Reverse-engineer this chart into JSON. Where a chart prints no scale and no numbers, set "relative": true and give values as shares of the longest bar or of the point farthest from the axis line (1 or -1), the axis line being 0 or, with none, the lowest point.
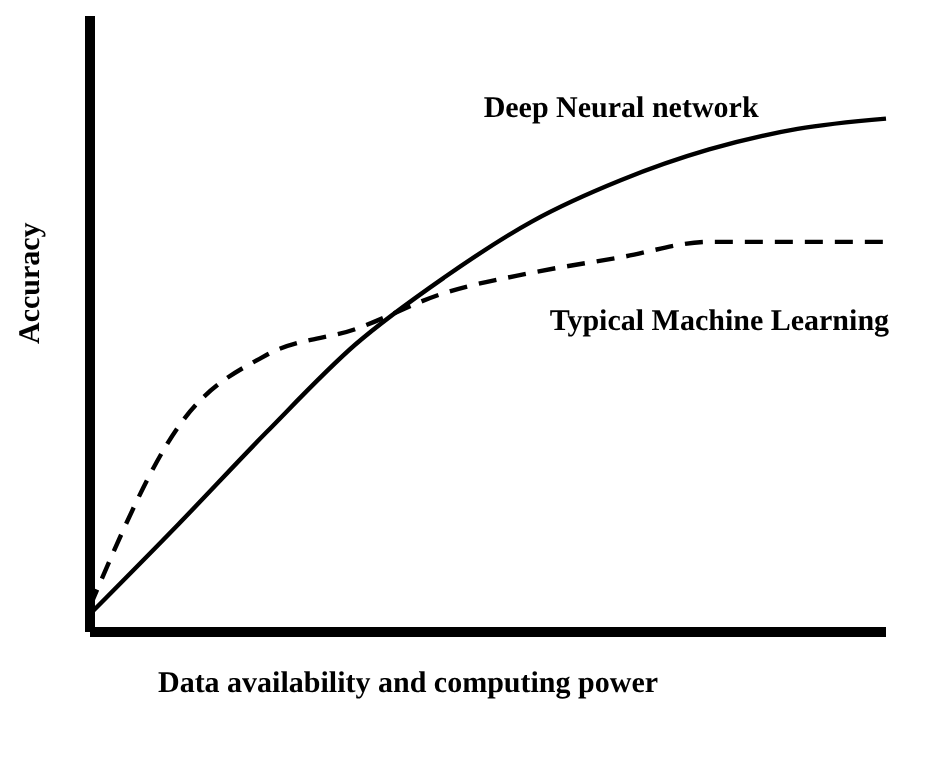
{
  "chart_data": {
    "type": "line",
    "relative": true,
    "xlabel": "Data availability and computing power",
    "ylabel": "Accuracy",
    "categories": [
      null,
      null,
      null,
      null,
      null,
      null,
      null,
      null,
      null,
      null
    ],
    "marker": "none",
    "legend": false,
    "grid": false,
    "series": [
      {
        "name": "Deep Neural network",
        "color": "#000000",
        "line_style": "solid",
        "values": [
          0.035,
          0.21,
          0.39,
          0.56,
          0.69,
          0.8,
          0.88,
          0.94,
          0.98,
          1
        ]
      },
      {
        "name": "Typical Machine Learning",
        "color": "#000000",
        "line_style": "dashed",
        "values": [
          0.05,
          0.4,
          0.54,
          0.59,
          0.66,
          0.7,
          0.73,
          0.76,
          0.76,
          0.76
        ]
      }
    ]
  }
}
